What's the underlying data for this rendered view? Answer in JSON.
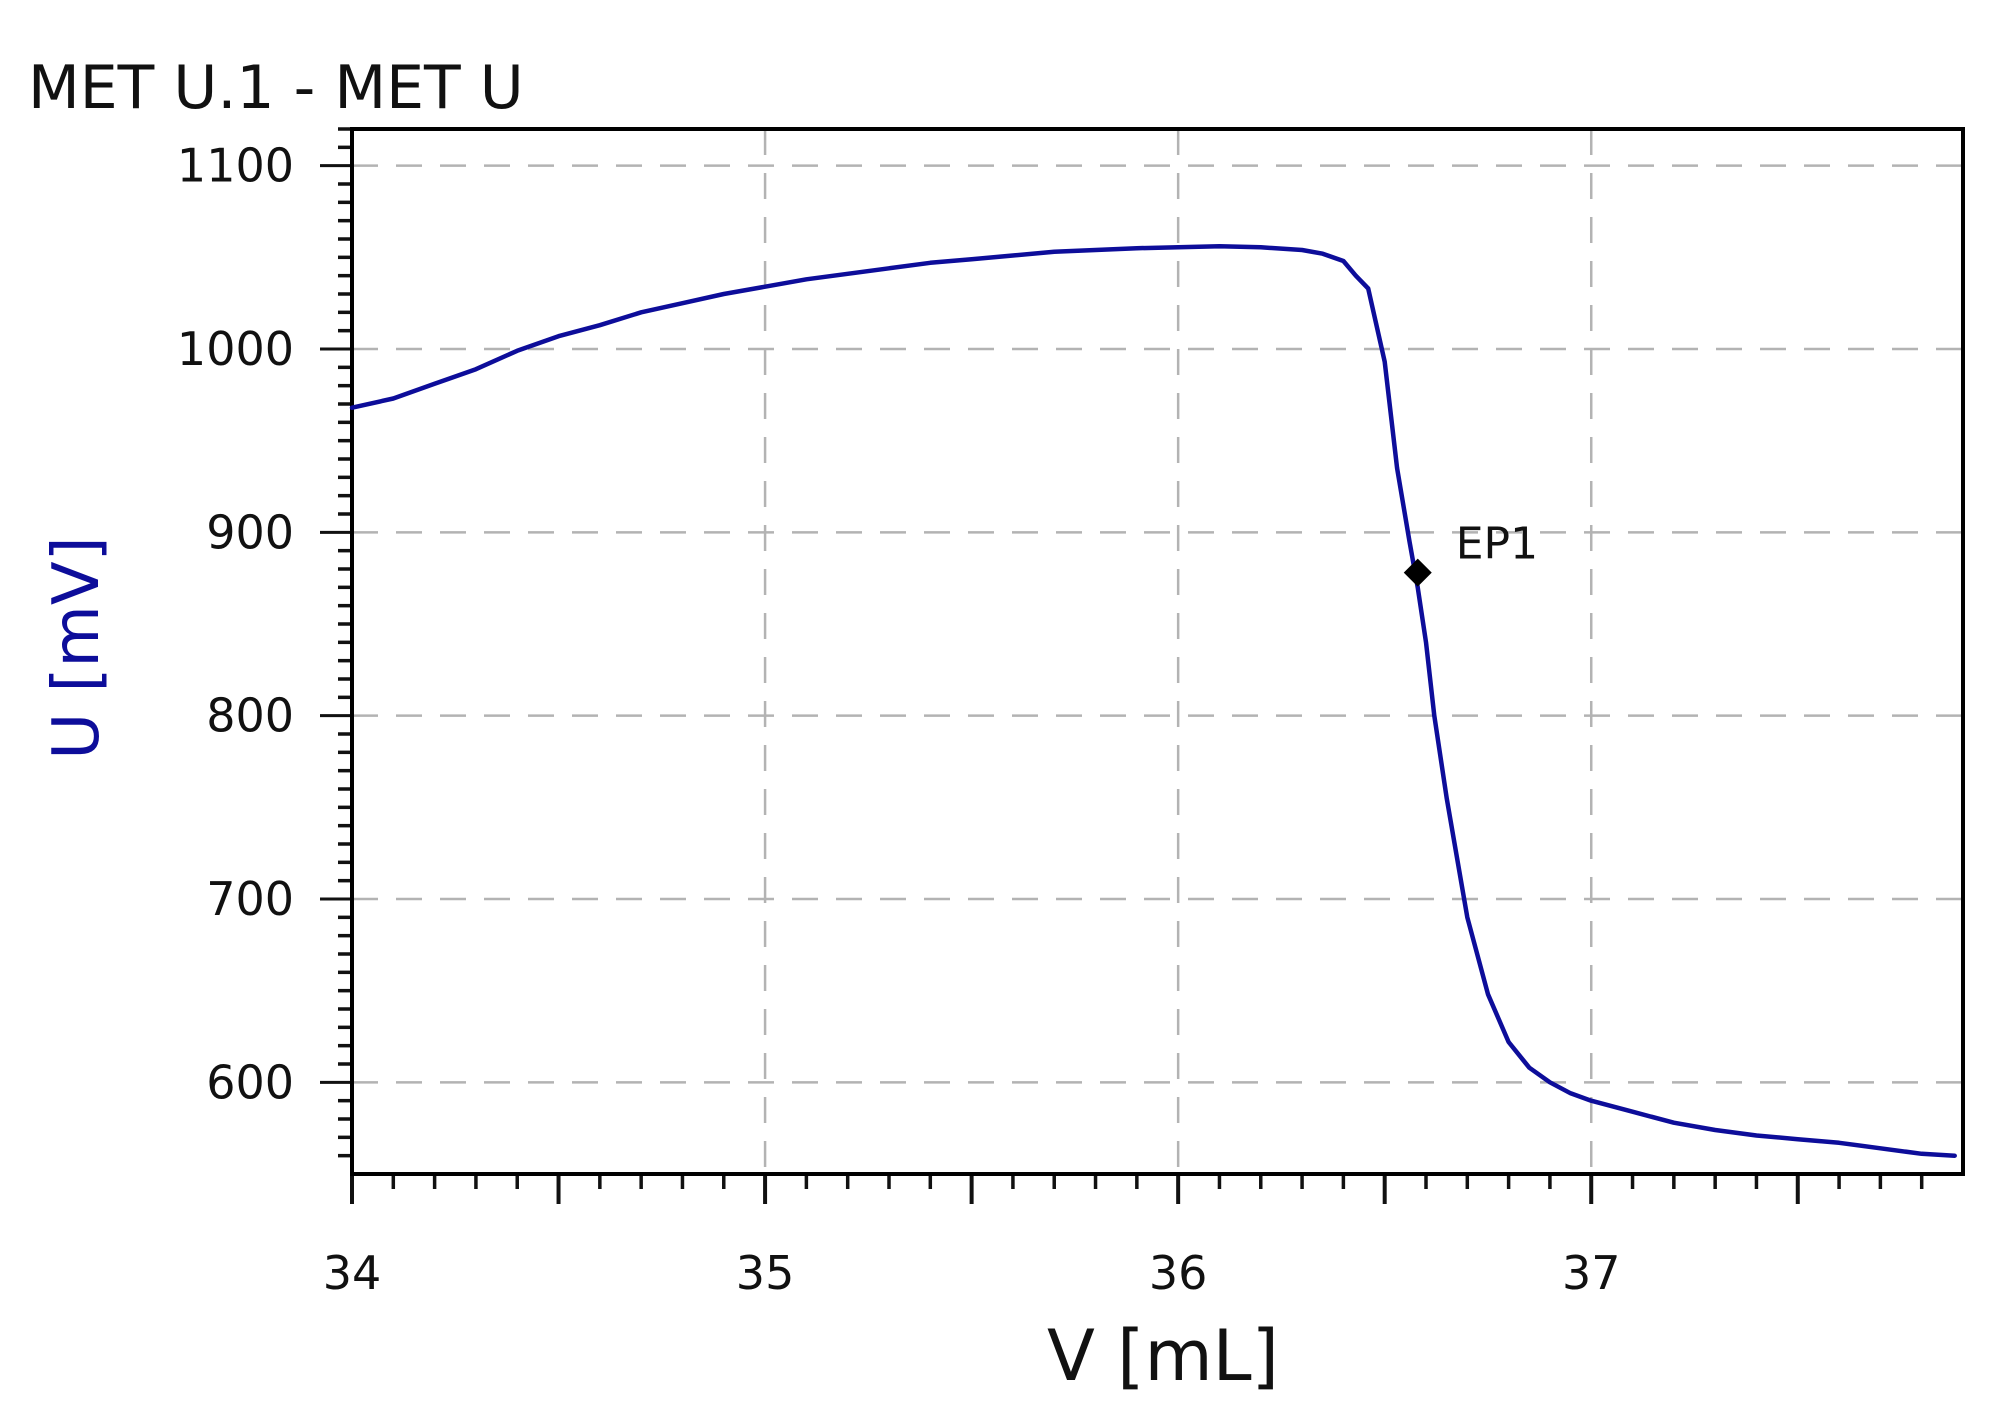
{
  "chart_data": {
    "type": "line",
    "title": "MET U.1 - MET U",
    "xlabel": "V [mL]",
    "ylabel": "U [mV]",
    "xlim": [
      34.0,
      37.9
    ],
    "ylim": [
      550,
      1120
    ],
    "x_ticks": [
      34,
      35,
      36,
      37
    ],
    "y_ticks": [
      600,
      700,
      800,
      900,
      1000,
      1100
    ],
    "grid": true,
    "colors": {
      "series": "#0d0d9a",
      "ylabel": "#0d0d9a",
      "grid": "#b3b3b3",
      "marker": "#000000"
    },
    "series": [
      {
        "x": [
          34.0,
          34.1,
          34.2,
          34.3,
          34.4,
          34.5,
          34.6,
          34.7,
          34.8,
          34.9,
          35.0,
          35.1,
          35.2,
          35.3,
          35.4,
          35.5,
          35.6,
          35.7,
          35.8,
          35.9,
          36.0,
          36.1,
          36.2,
          36.3,
          36.35,
          36.4,
          36.43,
          36.46,
          36.5,
          36.53,
          36.56,
          36.58,
          36.6,
          36.62,
          36.65,
          36.7,
          36.75,
          36.8,
          36.85,
          36.9,
          36.95,
          37.0,
          37.1,
          37.2,
          37.3,
          37.4,
          37.5,
          37.6,
          37.7,
          37.8,
          37.88
        ],
        "y": [
          968,
          973,
          981,
          989,
          999,
          1007,
          1013,
          1020,
          1025,
          1030,
          1034,
          1038,
          1041,
          1044,
          1047,
          1049,
          1051,
          1053,
          1054,
          1055,
          1055.5,
          1056,
          1055.5,
          1054,
          1052,
          1048,
          1040,
          1033,
          993,
          935,
          895,
          870,
          840,
          800,
          755,
          690,
          648,
          622,
          608,
          600,
          594,
          590,
          584,
          578,
          574,
          571,
          569,
          567,
          564,
          561,
          560
        ]
      }
    ],
    "annotations": [
      {
        "label": "EP1",
        "x": 36.58,
        "y": 878
      }
    ]
  }
}
